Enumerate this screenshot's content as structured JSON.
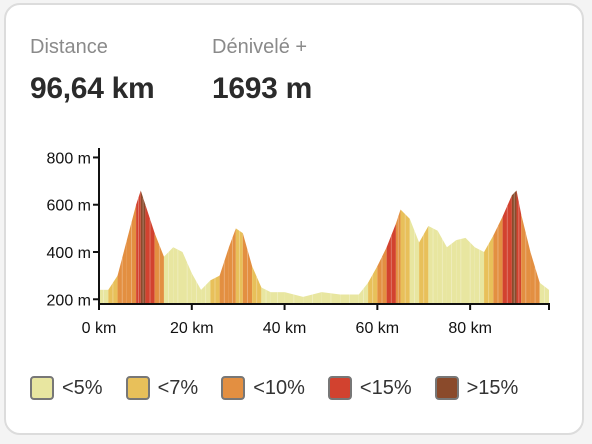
{
  "stats": {
    "distance": {
      "label": "Distance",
      "value": "96,64 km"
    },
    "elevation_gain": {
      "label": "Dénivelé +",
      "value": "1693 m"
    }
  },
  "colors": {
    "lt5": "#e8e6a0",
    "lt7": "#e8c05a",
    "lt10": "#e38f41",
    "lt15": "#d2422f",
    "gt15": "#8a4a2b"
  },
  "legend": [
    {
      "label": "<5%",
      "color_key": "lt5"
    },
    {
      "label": "<7%",
      "color_key": "lt7"
    },
    {
      "label": "<10%",
      "color_key": "lt10"
    },
    {
      "label": "<15%",
      "color_key": "lt15"
    },
    {
      "label": ">15%",
      "color_key": "gt15"
    }
  ],
  "chart_data": {
    "type": "area",
    "xlabel": "",
    "ylabel": "",
    "xlim": [
      0,
      97
    ],
    "ylim": [
      180,
      840
    ],
    "x_ticks": [
      0,
      20,
      40,
      60,
      80
    ],
    "x_tick_labels": [
      "0 km",
      "20 km",
      "40 km",
      "60 km",
      "80 km"
    ],
    "y_ticks": [
      200,
      400,
      600,
      800
    ],
    "y_tick_labels": [
      "200 m",
      "400 m",
      "600 m",
      "800 m"
    ],
    "x": [
      0,
      2,
      4,
      6,
      8,
      9,
      10,
      12,
      14,
      16,
      18,
      20,
      22,
      24,
      26,
      28,
      29.5,
      31,
      33,
      35,
      37,
      40,
      44,
      48,
      52,
      56,
      58,
      60,
      62,
      64,
      65,
      67,
      69,
      71,
      73,
      75,
      77,
      79,
      81,
      83,
      85,
      87,
      89,
      90,
      91,
      93,
      95,
      97
    ],
    "elevation": [
      240,
      240,
      300,
      450,
      600,
      660,
      600,
      480,
      380,
      420,
      400,
      310,
      240,
      280,
      300,
      420,
      500,
      480,
      340,
      250,
      230,
      230,
      210,
      230,
      220,
      220,
      270,
      340,
      420,
      520,
      580,
      540,
      440,
      510,
      490,
      420,
      450,
      460,
      420,
      400,
      470,
      550,
      640,
      660,
      560,
      400,
      270,
      240
    ],
    "grade_class": [
      "lt5",
      "lt7",
      "lt10",
      "lt10",
      "lt15",
      "gt15",
      "lt15",
      "lt10",
      "lt5",
      "lt5",
      "lt5",
      "lt5",
      "lt5",
      "lt7",
      "lt10",
      "lt10",
      "lt7",
      "lt10",
      "lt7",
      "lt5",
      "lt5",
      "lt5",
      "lt5",
      "lt5",
      "lt5",
      "lt5",
      "lt7",
      "lt10",
      "lt15",
      "lt10",
      "lt7",
      "lt5",
      "lt7",
      "lt5",
      "lt5",
      "lt5",
      "lt5",
      "lt5",
      "lt5",
      "lt7",
      "lt10",
      "lt15",
      "gt15",
      "lt15",
      "lt10",
      "lt10",
      "lt5",
      "lt5"
    ]
  }
}
